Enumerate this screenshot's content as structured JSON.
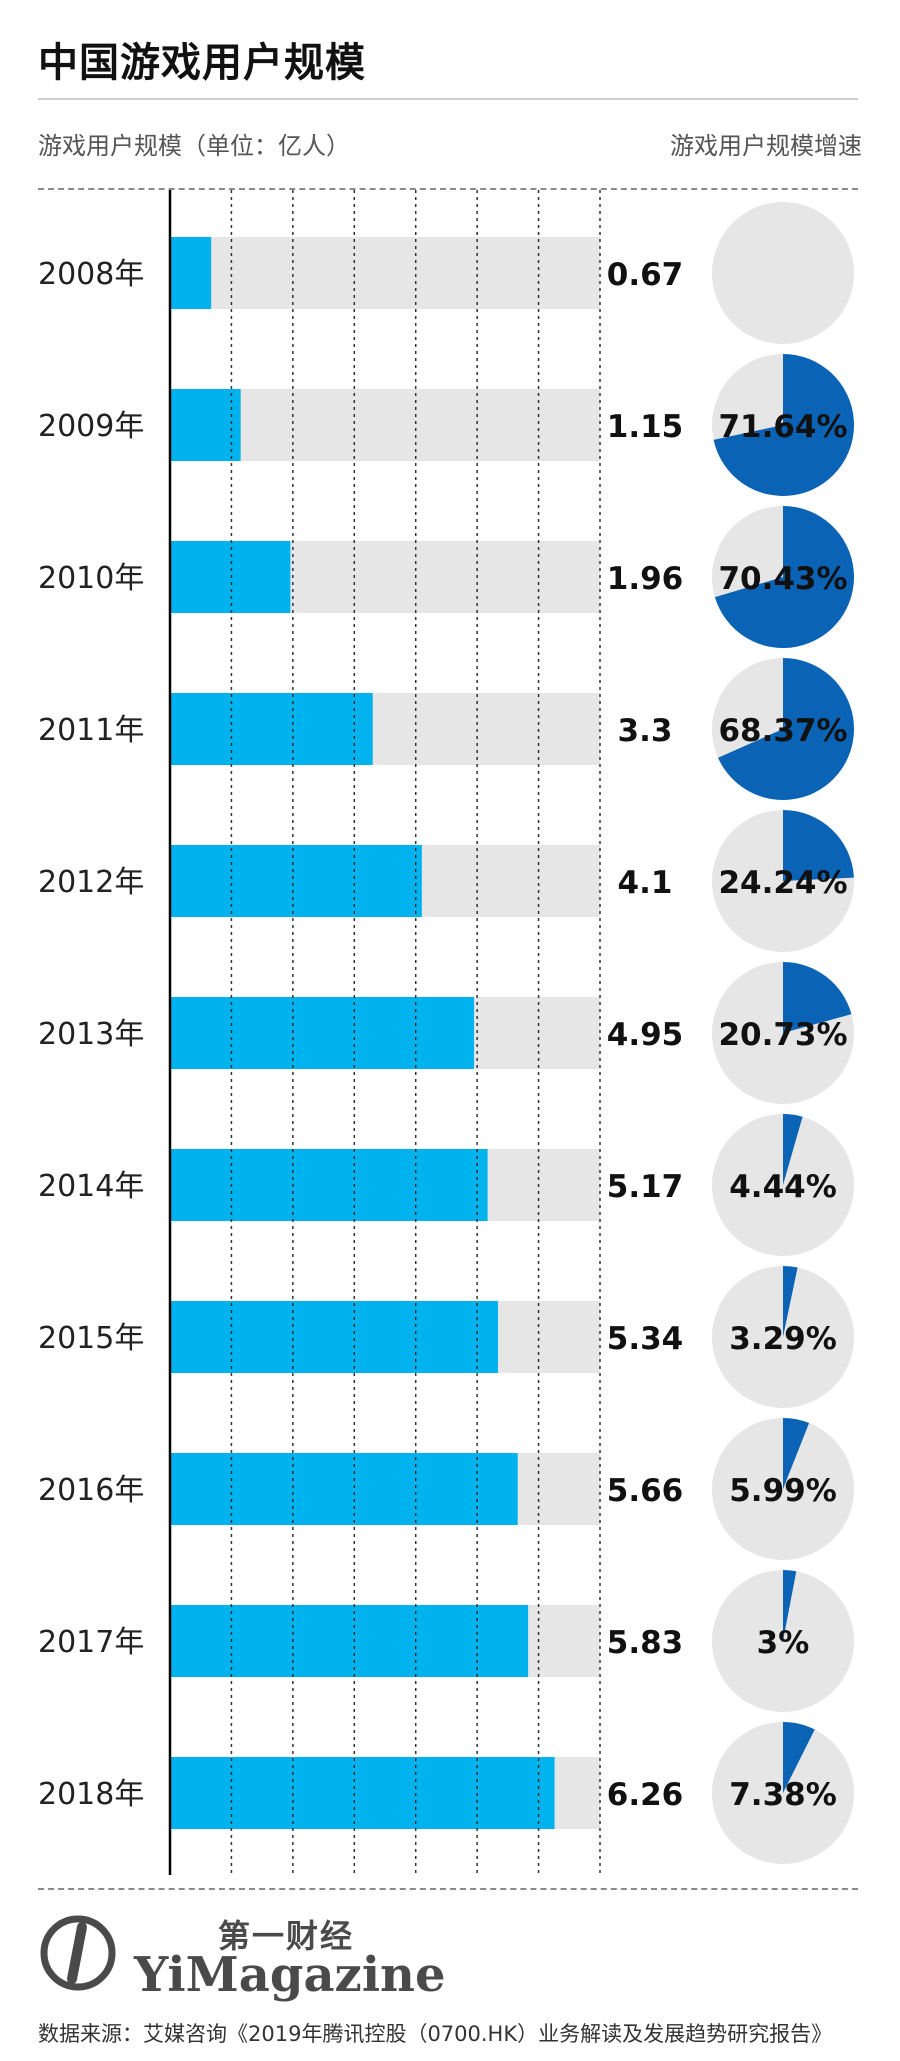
{
  "header": {
    "title": "中国游戏用户规模",
    "subtitle_left": "游戏用户规模（单位：亿人）",
    "subtitle_right": "游戏用户规模增速"
  },
  "colors": {
    "bar": "#00b2ed",
    "bar_track": "#e6e6e6",
    "pie_fill": "#0b63b6",
    "pie_track": "#e6e6e6",
    "axis": "#000000",
    "gridline": "#333333"
  },
  "chart_data": [
    {
      "type": "bar",
      "orientation": "horizontal",
      "categories": [
        "2008年",
        "2009年",
        "2010年",
        "2011年",
        "2012年",
        "2013年",
        "2014年",
        "2015年",
        "2016年",
        "2017年",
        "2018年"
      ],
      "values": [
        0.67,
        1.15,
        1.96,
        3.3,
        4.1,
        4.95,
        5.17,
        5.34,
        5.66,
        5.83,
        6.26
      ],
      "value_labels": [
        "0.67",
        "1.15",
        "1.96",
        "3.3",
        "4.1",
        "4.95",
        "5.17",
        "5.34",
        "5.66",
        "5.83",
        "6.26"
      ],
      "xlim": [
        0,
        7
      ],
      "grid": true,
      "gridline_step": 1
    },
    {
      "type": "pie",
      "categories": [
        "2008年",
        "2009年",
        "2010年",
        "2011年",
        "2012年",
        "2013年",
        "2014年",
        "2015年",
        "2016年",
        "2017年",
        "2018年"
      ],
      "values": [
        null,
        71.64,
        70.43,
        68.37,
        24.24,
        20.73,
        4.44,
        3.29,
        5.99,
        3,
        7.38
      ],
      "value_labels": [
        "",
        "71.64%",
        "70.43%",
        "68.37%",
        "24.24%",
        "20.73%",
        "4.44%",
        "3.29%",
        "5.99%",
        "3%",
        "7.38%"
      ]
    }
  ],
  "footer": {
    "logo_cn": "第一财经",
    "logo_en": "YiMagazine",
    "source": "数据来源：艾媒咨询《2019年腾讯控股（0700.HK）业务解读及发展趋势研究报告》"
  }
}
